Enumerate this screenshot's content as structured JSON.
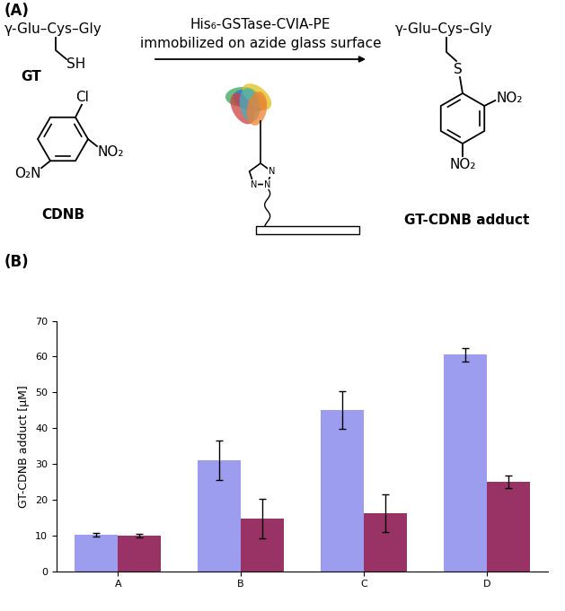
{
  "scheme": {
    "panel_label": "(A)",
    "reactant_thiol": "γ-Glu–Cys–Gly",
    "thiol_group": "SH",
    "thiol_name": "GT",
    "leaving_group": "Cl",
    "nitro_left": "O₂N",
    "nitro_right": "NO₂",
    "aryl_name": "CDNB",
    "enzyme": "His₆-GSTase-CVIA-PE",
    "condition": "immobilized on azide glass surface",
    "triazole_atoms": [
      "N",
      "N",
      "N"
    ],
    "product_peptide": "γ-Glu–Cys–Gly",
    "product_linker": "S",
    "product_nitro_ortho": "NO₂",
    "product_nitro_para": "NO₂",
    "product_name": "GT-CDNB adduct"
  },
  "chart_data": {
    "panel_label": "(B)",
    "type": "bar",
    "y_label": "GT-CDNB adduct [µM]",
    "categories": [
      "A",
      "B",
      "C",
      "D"
    ],
    "series": [
      {
        "color": "#9d9df0",
        "values": [
          10.2,
          31,
          45,
          60.5
        ],
        "errors": [
          0.5,
          5.5,
          5.3,
          1.8
        ]
      },
      {
        "color": "#993366",
        "values": [
          9.9,
          14.7,
          16.2,
          25
        ],
        "errors": [
          0.5,
          5.5,
          5.2,
          1.8
        ]
      }
    ],
    "ylim": [
      0,
      70
    ],
    "yticks": [
      0,
      10,
      20,
      30,
      40,
      50,
      60,
      70
    ],
    "grid": false
  }
}
